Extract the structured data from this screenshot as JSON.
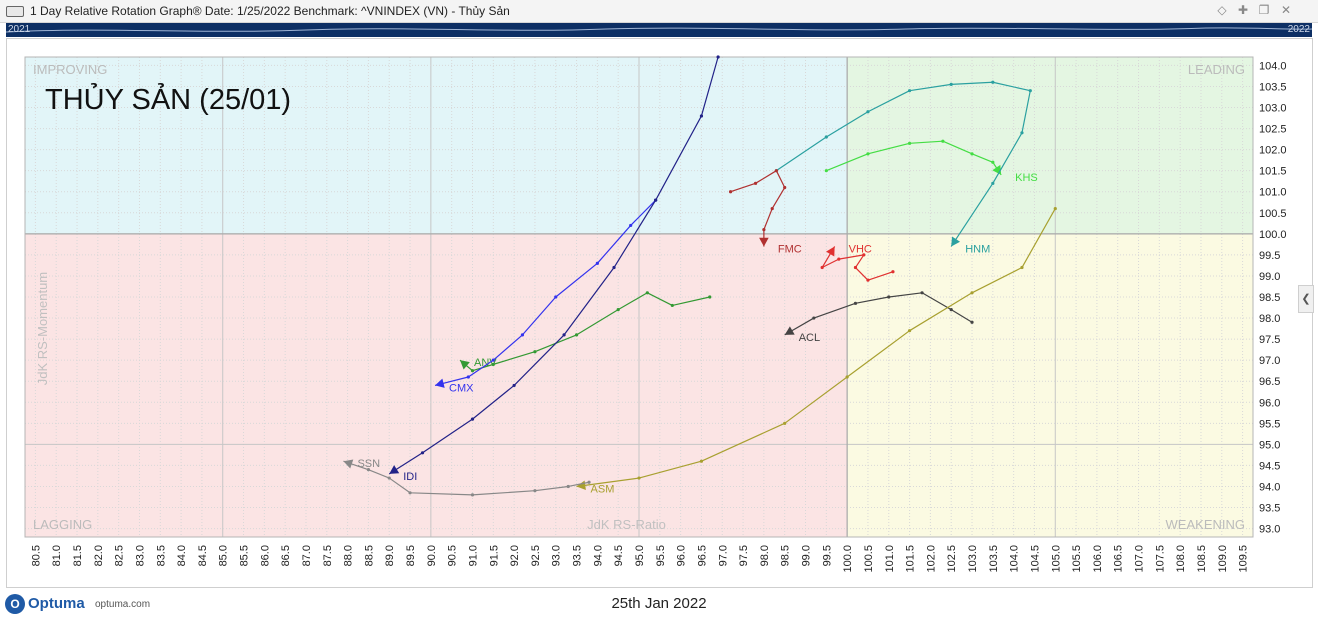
{
  "window": {
    "title": "1 Day Relative Rotation Graph®    Date: 1/25/2022  Benchmark:  ^VNINDEX (VN) - Thủy Sản",
    "controls": [
      "diamond-icon",
      "pin-icon",
      "restore-icon",
      "close-icon"
    ]
  },
  "timeline": {
    "start_label": "2021",
    "end_label": "2022"
  },
  "footer": {
    "brand": "Optuma",
    "url": "optuma.com",
    "date": "25th Jan 2022"
  },
  "colors": {
    "improving": "#e2f5f8",
    "leading": "#e4f6e2",
    "lagging": "#fbe4e4",
    "weakening": "#fbfae2",
    "timeline": "#0d2f64"
  },
  "chart_data": {
    "type": "scatter",
    "title": "THỦY SẢN (25/01)",
    "xlabel": "JdK RS-Ratio",
    "ylabel": "JdK RS-Momentum",
    "xlim": [
      80.25,
      109.75
    ],
    "ylim": [
      92.8,
      104.2
    ],
    "x_ticks": [
      80.5,
      81.0,
      81.5,
      82.0,
      82.5,
      83.0,
      83.5,
      84.0,
      84.5,
      85.0,
      85.5,
      86.0,
      86.5,
      87.0,
      87.5,
      88.0,
      88.5,
      89.0,
      89.5,
      90.0,
      90.5,
      91.0,
      91.5,
      92.0,
      92.5,
      93.0,
      93.5,
      94.0,
      94.5,
      95.0,
      95.5,
      96.0,
      96.5,
      97.0,
      97.5,
      98.0,
      98.5,
      99.0,
      99.5,
      100.0,
      100.5,
      101.0,
      101.5,
      102.0,
      102.5,
      103.0,
      103.5,
      104.0,
      104.5,
      105.0,
      105.5,
      106.0,
      106.5,
      107.0,
      107.5,
      108.0,
      108.5,
      109.0,
      109.5
    ],
    "y_ticks": [
      93.0,
      93.5,
      94.0,
      94.5,
      95.0,
      95.5,
      96.0,
      96.5,
      97.0,
      97.5,
      98.0,
      98.5,
      99.0,
      99.5,
      100.0,
      100.5,
      101.0,
      101.5,
      102.0,
      102.5,
      103.0,
      103.5,
      104.0
    ],
    "grid": true,
    "quadrants": {
      "top_left": "IMPROVING",
      "top_right": "LEADING",
      "bottom_left": "LAGGING",
      "bottom_right": "WEAKENING"
    },
    "series": [
      {
        "name": "KHS",
        "color": "#44dd44",
        "points": [
          [
            99.5,
            101.5
          ],
          [
            100.5,
            101.9
          ],
          [
            101.5,
            102.15
          ],
          [
            102.3,
            102.2
          ],
          [
            103.0,
            101.9
          ],
          [
            103.5,
            101.7
          ],
          [
            103.7,
            101.4
          ]
        ]
      },
      {
        "name": "HNM",
        "color": "#2aa0a0",
        "points": [
          [
            98.3,
            101.5
          ],
          [
            99.5,
            102.3
          ],
          [
            100.5,
            102.9
          ],
          [
            101.5,
            103.4
          ],
          [
            102.5,
            103.55
          ],
          [
            103.5,
            103.6
          ],
          [
            104.4,
            103.4
          ],
          [
            104.2,
            102.4
          ],
          [
            103.5,
            101.2
          ],
          [
            102.5,
            99.7
          ]
        ]
      },
      {
        "name": "FMC",
        "color": "#b03030",
        "points": [
          [
            97.2,
            101.0
          ],
          [
            97.8,
            101.2
          ],
          [
            98.3,
            101.5
          ],
          [
            98.5,
            101.1
          ],
          [
            98.2,
            100.6
          ],
          [
            98.0,
            100.1
          ],
          [
            98.0,
            99.7
          ]
        ]
      },
      {
        "name": "VHC",
        "color": "#e03030",
        "points": [
          [
            101.1,
            99.1
          ],
          [
            100.5,
            98.9
          ],
          [
            100.2,
            99.2
          ],
          [
            100.4,
            99.5
          ],
          [
            99.8,
            99.4
          ],
          [
            99.4,
            99.2
          ],
          [
            99.7,
            99.7
          ]
        ]
      },
      {
        "name": "ACL",
        "color": "#444444",
        "points": [
          [
            103.0,
            97.9
          ],
          [
            102.5,
            98.2
          ],
          [
            101.8,
            98.6
          ],
          [
            101.0,
            98.5
          ],
          [
            100.2,
            98.35
          ],
          [
            99.2,
            98.0
          ],
          [
            98.5,
            97.6
          ]
        ]
      },
      {
        "name": "ASM",
        "color": "#a8a030",
        "points": [
          [
            105.0,
            100.6
          ],
          [
            104.2,
            99.2
          ],
          [
            103.0,
            98.6
          ],
          [
            101.5,
            97.7
          ],
          [
            100.0,
            96.6
          ],
          [
            98.5,
            95.5
          ],
          [
            96.5,
            94.6
          ],
          [
            95.0,
            94.2
          ],
          [
            93.5,
            94.0
          ]
        ]
      },
      {
        "name": "ANV",
        "color": "#339933",
        "points": [
          [
            96.7,
            98.5
          ],
          [
            95.8,
            98.3
          ],
          [
            95.2,
            98.6
          ],
          [
            94.5,
            98.2
          ],
          [
            93.5,
            97.6
          ],
          [
            92.5,
            97.2
          ],
          [
            91.5,
            96.9
          ],
          [
            91.0,
            96.75
          ],
          [
            90.7,
            97.0
          ]
        ]
      },
      {
        "name": "CMX",
        "color": "#3333ee",
        "points": [
          [
            95.4,
            100.8
          ],
          [
            94.8,
            100.2
          ],
          [
            94.0,
            99.3
          ],
          [
            93.0,
            98.5
          ],
          [
            92.2,
            97.6
          ],
          [
            91.5,
            97.0
          ],
          [
            90.9,
            96.6
          ],
          [
            90.1,
            96.4
          ]
        ]
      },
      {
        "name": "IDI",
        "color": "#222288",
        "points": [
          [
            96.9,
            104.2
          ],
          [
            96.5,
            102.8
          ],
          [
            95.4,
            100.8
          ],
          [
            94.4,
            99.2
          ],
          [
            93.2,
            97.6
          ],
          [
            92.0,
            96.4
          ],
          [
            91.0,
            95.6
          ],
          [
            89.8,
            94.8
          ],
          [
            89.0,
            94.3
          ]
        ]
      },
      {
        "name": "SSN",
        "color": "#888888",
        "points": [
          [
            93.8,
            94.1
          ],
          [
            93.3,
            94.0
          ],
          [
            92.5,
            93.9
          ],
          [
            91.0,
            93.8
          ],
          [
            89.5,
            93.85
          ],
          [
            89.0,
            94.2
          ],
          [
            88.5,
            94.4
          ],
          [
            87.9,
            94.6
          ]
        ]
      }
    ]
  }
}
